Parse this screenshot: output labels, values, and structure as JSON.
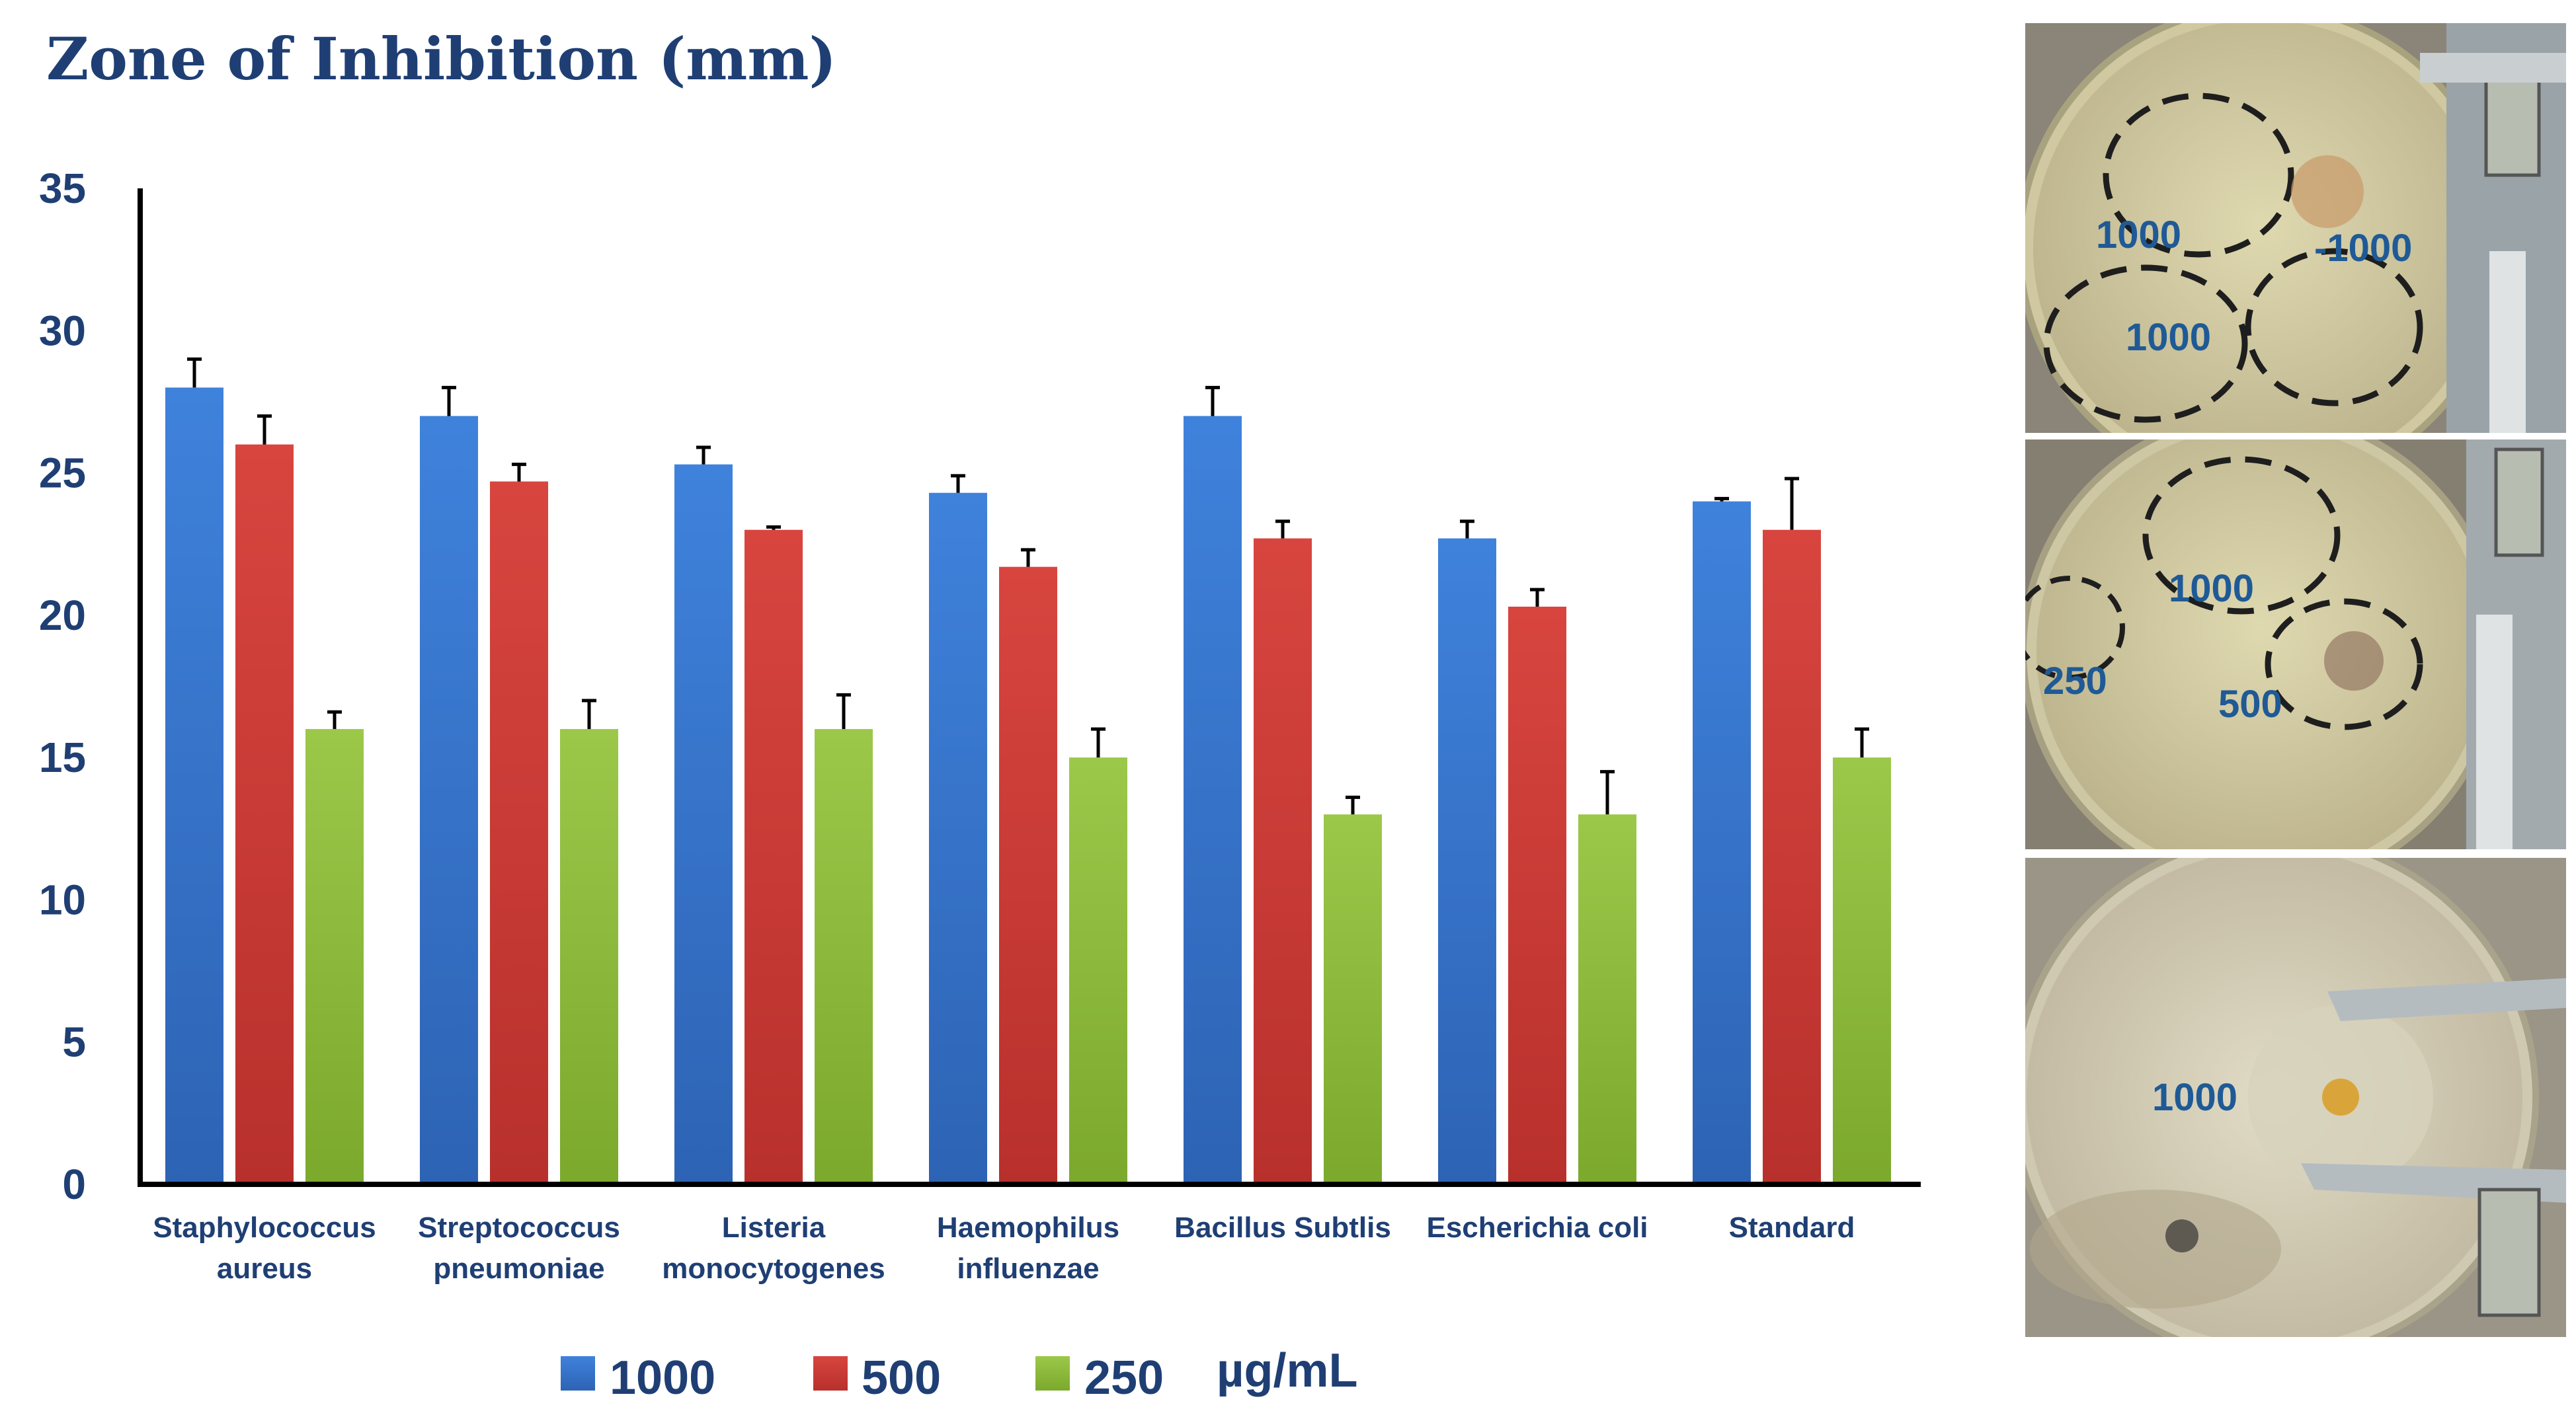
{
  "chart_data": {
    "type": "bar",
    "title": "Zone of Inhibition (mm)",
    "xlabel": "",
    "ylabel": "",
    "ylim": [
      0,
      35
    ],
    "yticks": [
      "0",
      "5",
      "10",
      "15",
      "20",
      "25",
      "30",
      "35"
    ],
    "categories": [
      [
        "Staphylococcus",
        "aureus"
      ],
      [
        "Streptococcus",
        "pneumoniae"
      ],
      [
        "Listeria",
        "monocytogenes"
      ],
      [
        "Haemophilus",
        "influenzae"
      ],
      [
        "Bacillus Subtlis"
      ],
      [
        "Escherichia coli"
      ],
      [
        "Standard"
      ]
    ],
    "series": [
      {
        "name": "1000",
        "color": "#3a7bd5",
        "values": [
          28,
          27,
          25.3,
          24.3,
          27,
          22.7,
          24
        ],
        "errors": [
          1,
          1,
          0.6,
          0.6,
          1,
          0.6,
          0.1
        ]
      },
      {
        "name": "500",
        "color": "#d23f3a",
        "values": [
          26,
          24.7,
          23,
          21.7,
          22.7,
          20.3,
          23
        ],
        "errors": [
          1,
          0.6,
          0.1,
          0.6,
          0.6,
          0.6,
          1.8
        ]
      },
      {
        "name": "250",
        "color": "#8fbf3a",
        "values": [
          16,
          16,
          16,
          15,
          13,
          13,
          15
        ],
        "errors": [
          0.6,
          1,
          1.2,
          1,
          0.6,
          1.5,
          1
        ]
      }
    ],
    "legend_unit": "µg/mL",
    "legend_position": "bottom",
    "grid": false
  },
  "photos": {
    "plate1_labels": [
      "1000",
      "-1000",
      "1000"
    ],
    "plate2_labels": [
      "1000",
      "250",
      "500"
    ],
    "plate3_labels": [
      "1000"
    ]
  }
}
